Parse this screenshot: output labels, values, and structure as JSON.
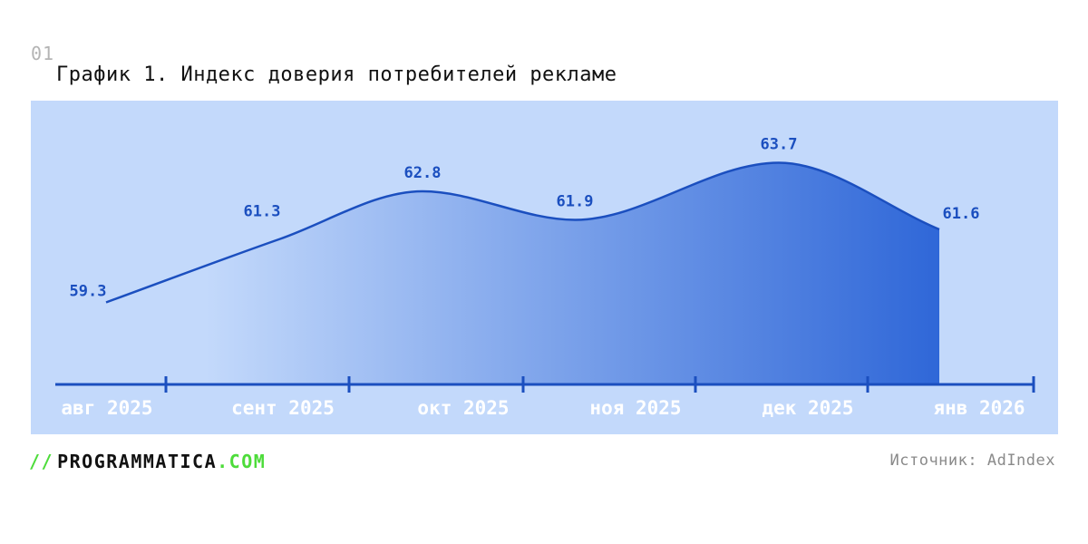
{
  "header": {
    "number": "01",
    "title": "График 1. Индекс доверия потребителей рекламе"
  },
  "chart_data": {
    "type": "area",
    "categories": [
      "авг 2025",
      "сент 2025",
      "окт 2025",
      "ноя 2025",
      "дек 2025",
      "янв 2026"
    ],
    "values": [
      59.3,
      61.3,
      62.8,
      61.9,
      63.7,
      61.6
    ],
    "value_labels": [
      "59.3",
      "61.3",
      "62.8",
      "61.9",
      "63.7",
      "61.6"
    ],
    "title": "График 1. Индекс доверия потребителей рекламе",
    "xlabel": "",
    "ylabel": "",
    "ylim": [
      58.0,
      64.0
    ],
    "grid": false,
    "colors": {
      "panel": "#c3d9fb",
      "line": "#1b4fbf",
      "fill_start": "#c3d9fb",
      "fill_end": "#2f67d8",
      "axis": "#1b4fbf",
      "value_label": "#1b4fbf",
      "tick_label": "#ffffff"
    }
  },
  "footer": {
    "logo_slashes": "//",
    "logo_name": "PROGRAMMATICA",
    "logo_tld": ".COM",
    "source": "Источник: AdIndex"
  }
}
